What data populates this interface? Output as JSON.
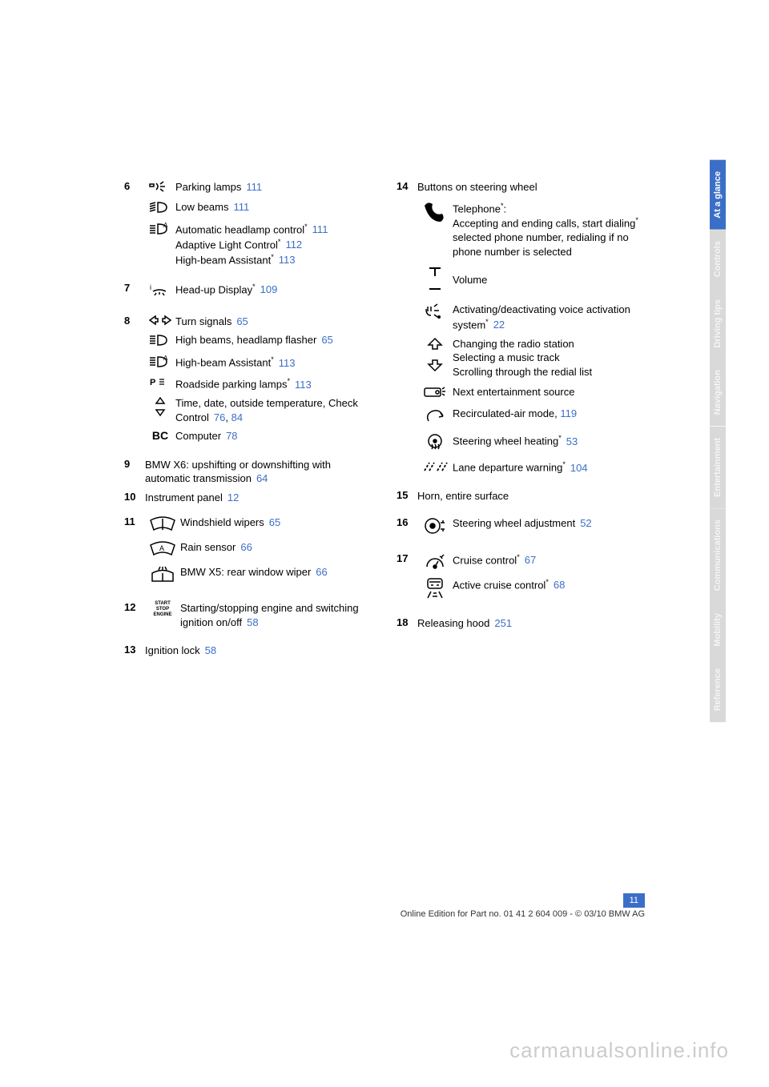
{
  "page_number": "11",
  "footer_line": "Online Edition for Part no. 01 41 2 604 009 - © 03/10 BMW AG",
  "watermark": "carmanualsonline.info",
  "ref_color": "#3b6fc7",
  "tabs": [
    {
      "label": "At a glance",
      "bg": "#3b6fc7",
      "fg": "#ffffff"
    },
    {
      "label": "Controls",
      "bg": "#d9d9d9",
      "fg": "#f5f5f5"
    },
    {
      "label": "Driving tips",
      "bg": "#d9d9d9",
      "fg": "#f5f5f5"
    },
    {
      "label": "Navigation",
      "bg": "#d9d9d9",
      "fg": "#f5f5f5"
    },
    {
      "label": "Entertainment",
      "bg": "#d9d9d9",
      "fg": "#f5f5f5"
    },
    {
      "label": "Communications",
      "bg": "#d9d9d9",
      "fg": "#f5f5f5"
    },
    {
      "label": "Mobility",
      "bg": "#d9d9d9",
      "fg": "#f5f5f5"
    },
    {
      "label": "Reference",
      "bg": "#d9d9d9",
      "fg": "#f5f5f5"
    }
  ],
  "left": {
    "g6": {
      "num": "6",
      "rows": [
        {
          "icon": "parking-lamps",
          "text": "Parking lamps",
          "ref": "111"
        },
        {
          "icon": "low-beams",
          "text": "Low beams",
          "ref": "111"
        },
        {
          "icon": "auto-headlamp",
          "lines": [
            {
              "text": "Automatic headlamp control",
              "star": true,
              "ref": "111"
            },
            {
              "text": "Adaptive Light Control",
              "star": true,
              "ref": "112"
            },
            {
              "text": "High-beam Assistant",
              "star": true,
              "ref": "113"
            }
          ]
        }
      ]
    },
    "g7": {
      "num": "7",
      "rows": [
        {
          "icon": "hud",
          "text": "Head-up Display",
          "star": true,
          "ref": "109"
        }
      ]
    },
    "g8": {
      "num": "8",
      "rows": [
        {
          "icon": "turn-signals",
          "text": "Turn signals",
          "ref": "65"
        },
        {
          "icon": "high-beams",
          "text": "High beams, headlamp flasher",
          "ref": "65"
        },
        {
          "icon": "hba",
          "text": "High-beam Assistant",
          "star": true,
          "ref": "113"
        },
        {
          "icon": "roadside",
          "text": "Roadside parking lamps",
          "star": true,
          "ref": "113"
        },
        {
          "icon": "updown",
          "text": "Time, date, outside temperature, Check Control",
          "refs": [
            "76",
            "84"
          ]
        },
        {
          "icon": "bc",
          "text": "Computer",
          "ref": "78"
        }
      ]
    },
    "g9": {
      "num": "9",
      "text": "BMW X6: upshifting or downshifting with automatic transmission",
      "ref": "64"
    },
    "g10": {
      "num": "10",
      "text": "Instrument panel",
      "ref": "12"
    },
    "g11": {
      "num": "11",
      "rows": [
        {
          "icon": "wiper",
          "text": "Windshield wipers",
          "ref": "65"
        },
        {
          "icon": "rain",
          "text": "Rain sensor",
          "ref": "66"
        },
        {
          "icon": "rear-wiper",
          "text": "BMW X5: rear window wiper",
          "ref": "66"
        }
      ]
    },
    "g12": {
      "num": "12",
      "rows": [
        {
          "icon": "startstop",
          "text": "Starting/stopping engine and switching ignition on/off",
          "ref": "58"
        }
      ]
    },
    "g13": {
      "num": "13",
      "text": "Ignition lock",
      "ref": "58"
    }
  },
  "right": {
    "g14": {
      "num": "14",
      "heading": "Buttons on steering wheel",
      "rows": [
        {
          "icon": "phone",
          "multiline": "Telephone*:\nAccepting and ending calls, start dialing* selected phone number, redialing if no phone number is selected"
        },
        {
          "icon": "volume",
          "text": "Volume"
        },
        {
          "icon": "voice",
          "text": "Activating/deactivating voice activation system",
          "star": true,
          "ref": "22"
        },
        {
          "icon": "updown2",
          "multiline": "Changing the radio station\nSelecting a music track\nScrolling through the redial list"
        },
        {
          "icon": "source",
          "text": "Next entertainment source"
        },
        {
          "icon": "recirc",
          "text": "Recirculated-air mode,",
          "ref_inline": "119"
        },
        {
          "icon": "wheel-heat",
          "text": "Steering wheel heating",
          "star": true,
          "ref": "53"
        },
        {
          "icon": "lane",
          "text": "Lane departure warning",
          "star": true,
          "ref": "104"
        }
      ]
    },
    "g15": {
      "num": "15",
      "text": "Horn, entire surface"
    },
    "g16": {
      "num": "16",
      "rows": [
        {
          "icon": "wheel-adj",
          "text": "Steering wheel adjustment",
          "ref": "52"
        }
      ]
    },
    "g17": {
      "num": "17",
      "rows": [
        {
          "icon": "cruise",
          "text": "Cruise control",
          "star": true,
          "ref": "67"
        },
        {
          "icon": "acc",
          "text": "Active cruise control",
          "star": true,
          "ref": "68"
        }
      ]
    },
    "g18": {
      "num": "18",
      "text": "Releasing hood",
      "ref": "251"
    }
  }
}
